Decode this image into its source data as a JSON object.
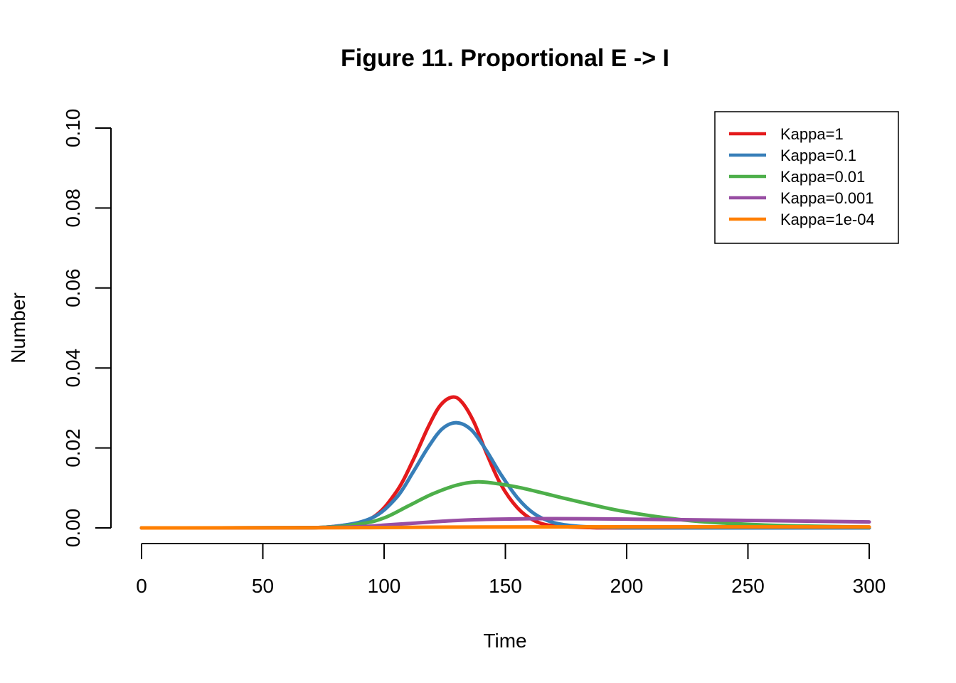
{
  "chart_data": {
    "type": "line",
    "title": "Figure 11. Proportional E -> I",
    "xlabel": "Time",
    "ylabel": "Number",
    "xlim": [
      0,
      300
    ],
    "ylim": [
      0,
      0.1
    ],
    "x_ticks": [
      "0",
      "50",
      "100",
      "150",
      "200",
      "250",
      "300"
    ],
    "y_ticks": [
      "0.00",
      "0.02",
      "0.04",
      "0.06",
      "0.08",
      "0.10"
    ],
    "grid": false,
    "legend_position": "top-right",
    "series": [
      {
        "name": "Kappa=1",
        "color": "#e41a1c",
        "points": [
          [
            0,
            0
          ],
          [
            60,
            2e-05
          ],
          [
            80,
            0.0004
          ],
          [
            95,
            0.0025
          ],
          [
            105,
            0.009
          ],
          [
            112,
            0.017
          ],
          [
            118,
            0.025
          ],
          [
            123,
            0.0305
          ],
          [
            128,
            0.0327
          ],
          [
            132,
            0.0315
          ],
          [
            137,
            0.0265
          ],
          [
            142,
            0.019
          ],
          [
            148,
            0.011
          ],
          [
            155,
            0.005
          ],
          [
            162,
            0.0018
          ],
          [
            170,
            0.0005
          ],
          [
            185,
            8e-05
          ],
          [
            200,
            1e-05
          ],
          [
            300,
            0
          ]
        ]
      },
      {
        "name": "Kappa=0.1",
        "color": "#377eb8",
        "points": [
          [
            0,
            0
          ],
          [
            60,
            2e-05
          ],
          [
            80,
            0.0004
          ],
          [
            95,
            0.0025
          ],
          [
            105,
            0.0075
          ],
          [
            112,
            0.014
          ],
          [
            118,
            0.02
          ],
          [
            124,
            0.0248
          ],
          [
            130,
            0.0263
          ],
          [
            136,
            0.0245
          ],
          [
            142,
            0.0195
          ],
          [
            148,
            0.0135
          ],
          [
            155,
            0.0075
          ],
          [
            162,
            0.0035
          ],
          [
            170,
            0.0013
          ],
          [
            180,
            0.0004
          ],
          [
            195,
            8e-05
          ],
          [
            210,
            2e-05
          ],
          [
            300,
            0
          ]
        ]
      },
      {
        "name": "Kappa=0.01",
        "color": "#4daf4a",
        "points": [
          [
            0,
            0
          ],
          [
            70,
            5e-05
          ],
          [
            90,
            0.001
          ],
          [
            100,
            0.0025
          ],
          [
            110,
            0.0055
          ],
          [
            120,
            0.0085
          ],
          [
            130,
            0.0107
          ],
          [
            138,
            0.0115
          ],
          [
            145,
            0.0112
          ],
          [
            155,
            0.0102
          ],
          [
            165,
            0.0088
          ],
          [
            175,
            0.0073
          ],
          [
            190,
            0.0052
          ],
          [
            200,
            0.004
          ],
          [
            215,
            0.0026
          ],
          [
            230,
            0.0016
          ],
          [
            250,
            0.0009
          ],
          [
            270,
            0.0005
          ],
          [
            300,
            0.0002
          ]
        ]
      },
      {
        "name": "Kappa=0.001",
        "color": "#984ea3",
        "points": [
          [
            0,
            0
          ],
          [
            70,
            5e-05
          ],
          [
            90,
            0.0003
          ],
          [
            100,
            0.0007
          ],
          [
            110,
            0.0011
          ],
          [
            125,
            0.0017
          ],
          [
            140,
            0.0021
          ],
          [
            160,
            0.0023
          ],
          [
            180,
            0.0023
          ],
          [
            200,
            0.0022
          ],
          [
            230,
            0.002
          ],
          [
            260,
            0.0018
          ],
          [
            300,
            0.0015
          ]
        ]
      },
      {
        "name": "Kappa=1e-04",
        "color": "#ff7f00",
        "points": [
          [
            0,
            0
          ],
          [
            80,
            5e-05
          ],
          [
            100,
            0.0001
          ],
          [
            130,
            0.0002
          ],
          [
            160,
            0.00024
          ],
          [
            200,
            0.00026
          ],
          [
            250,
            0.00026
          ],
          [
            300,
            0.00025
          ]
        ]
      }
    ]
  }
}
